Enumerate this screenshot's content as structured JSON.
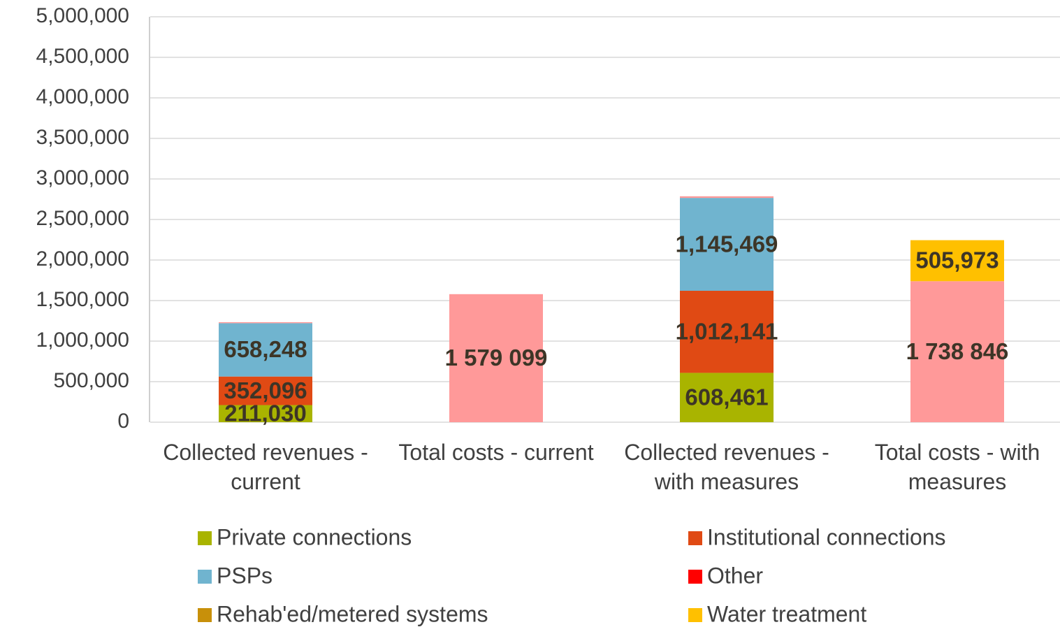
{
  "chart_data": {
    "type": "stacked_bar",
    "categories": [
      "Collected revenues - current",
      "Total costs - current",
      "Collected revenues - with measures",
      "Total costs - with measures"
    ],
    "series": [
      {
        "name": "Private connections",
        "color": "#a9b400",
        "values": [
          211030,
          null,
          608461,
          null
        ],
        "value_labels": [
          "211,030",
          null,
          "608,461",
          null
        ]
      },
      {
        "name": "Institutional connections",
        "color": "#e04a14",
        "values": [
          352096,
          null,
          1012141,
          null
        ],
        "value_labels": [
          "352,096",
          null,
          "1,012,141",
          null
        ]
      },
      {
        "name": "PSPs",
        "color": "#70b4cf",
        "values": [
          658248,
          null,
          1145469,
          null
        ],
        "value_labels": [
          "658,248",
          null,
          "1,145,469",
          null
        ]
      },
      {
        "name": "Other",
        "color": "#ff0000",
        "values": [
          null,
          null,
          null,
          null
        ]
      },
      {
        "name": "Rehab'ed/metered systems",
        "color": "#c8900a",
        "values": [
          null,
          null,
          null,
          null
        ]
      },
      {
        "color": "#ff9999",
        "values": [
          12000,
          1579099,
          20000,
          1738846
        ],
        "value_labels": [
          null,
          "1 579 099",
          null,
          "1 738 846"
        ]
      },
      {
        "name": "Water treatment",
        "color": "#ffc000",
        "values": [
          null,
          null,
          null,
          505973
        ],
        "value_labels": [
          null,
          null,
          null,
          "505,973"
        ]
      }
    ],
    "ylim": [
      0,
      5000000
    ],
    "yticks": [
      0,
      {
        "value": 500000,
        "label": "500,000"
      },
      {
        "value": 1000000,
        "label": "1,000,000"
      },
      {
        "value": 1500000,
        "label": "1,500,000"
      },
      {
        "value": 2000000,
        "label": "2,000,000"
      },
      {
        "value": 2500000,
        "label": "2,500,000"
      },
      {
        "value": 3000000,
        "label": "3,000,000"
      },
      {
        "value": 3500000,
        "label": "3,500,000"
      },
      {
        "value": 4000000,
        "label": "4,000,000"
      },
      {
        "value": 4500000,
        "label": "4,500,000"
      },
      {
        "value": 5000000,
        "label": "5,000,000"
      }
    ],
    "grid": true
  }
}
